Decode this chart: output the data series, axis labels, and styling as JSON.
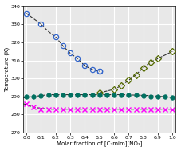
{
  "xlabel": "Molar fraction of [C₂mim][NO₃]",
  "ylabel": "Temperature (K)",
  "xlim": [
    -0.02,
    1.02
  ],
  "ylim": [
    270,
    340
  ],
  "yticks": [
    270,
    280,
    290,
    300,
    310,
    320,
    330,
    340
  ],
  "xticks": [
    0.0,
    0.1,
    0.2,
    0.3,
    0.4,
    0.5,
    0.6,
    0.7,
    0.8,
    0.9,
    1.0
  ],
  "blue_x": [
    0.0,
    0.1,
    0.2,
    0.25,
    0.3,
    0.35,
    0.4,
    0.45,
    0.5,
    0.5
  ],
  "blue_y": [
    336,
    330,
    323,
    318,
    314,
    311,
    307,
    305,
    304,
    304
  ],
  "olive_x": [
    0.5,
    0.6,
    0.65,
    0.7,
    0.75,
    0.8,
    0.85,
    0.9,
    1.0
  ],
  "olive_y": [
    292,
    294,
    296,
    299,
    302,
    306,
    309,
    311,
    315
  ],
  "teal_x": [
    0.0,
    0.05,
    0.1,
    0.15,
    0.2,
    0.25,
    0.3,
    0.35,
    0.4,
    0.45,
    0.5,
    0.55,
    0.6,
    0.65,
    0.7,
    0.75,
    0.8,
    0.85,
    0.9,
    0.95,
    1.0
  ],
  "teal_y": [
    290,
    290,
    290.5,
    291,
    291,
    291,
    291,
    291,
    291,
    291,
    291,
    291,
    291,
    291,
    291,
    291,
    290.5,
    290,
    290,
    290,
    289.5
  ],
  "magenta_x": [
    0.0,
    0.05,
    0.1,
    0.15,
    0.2,
    0.25,
    0.3,
    0.35,
    0.4,
    0.45,
    0.5,
    0.55,
    0.6,
    0.65,
    0.7,
    0.75,
    0.8,
    0.85,
    0.9,
    0.95,
    1.0
  ],
  "magenta_y": [
    286,
    284,
    283,
    283,
    283,
    283,
    283,
    283,
    283,
    283,
    283,
    283,
    283,
    283,
    283,
    283,
    283,
    283,
    283,
    283,
    283
  ],
  "blue_curve_x": [
    0.0,
    0.05,
    0.1,
    0.15,
    0.2,
    0.25,
    0.3,
    0.35,
    0.4,
    0.45,
    0.5
  ],
  "blue_curve_y": [
    336,
    333,
    330,
    326,
    323,
    318,
    314,
    311,
    307,
    305,
    304
  ],
  "olive_curve_x": [
    0.5,
    0.55,
    0.6,
    0.65,
    0.7,
    0.75,
    0.8,
    0.85,
    0.9,
    0.95,
    1.0
  ],
  "olive_curve_y": [
    292,
    293,
    294,
    296,
    299,
    302,
    306,
    309,
    311,
    313,
    315
  ],
  "teal_curve_x": [
    -0.02,
    0.0,
    0.15,
    0.35,
    0.5,
    0.65,
    0.85,
    1.0,
    1.02
  ],
  "teal_curve_y": [
    289.2,
    289.5,
    291,
    291,
    291,
    291,
    290.5,
    289.5,
    289.2
  ],
  "magenta_curve_x": [
    -0.02,
    0.0,
    0.05,
    0.15,
    0.4,
    0.7,
    0.9,
    1.0,
    1.02
  ],
  "magenta_curve_y": [
    286.0,
    285.5,
    284.0,
    283.0,
    283.0,
    283.0,
    283.0,
    283.0,
    283.0
  ],
  "blue_color": "#3366CC",
  "olive_color": "#556B00",
  "teal_color": "#007060",
  "magenta_color": "#FF00FF",
  "curve_color": "#333333",
  "bg_color": "#FFFFFF",
  "plot_bg_color": "#E8E8E8",
  "grid_color": "#FFFFFF"
}
